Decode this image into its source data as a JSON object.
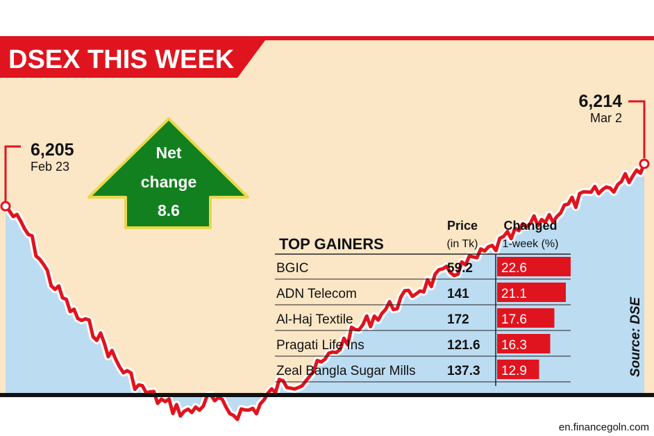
{
  "chart_data": {
    "type": "line",
    "title": "DSEX THIS WEEK",
    "start_point": {
      "value": "6,205",
      "label": "Feb 23",
      "y": 6205
    },
    "end_point": {
      "value": "6,214",
      "label": "Mar 2",
      "y": 6214
    },
    "net_change": {
      "line1": "Net",
      "line2": "change",
      "value": "8.6"
    },
    "source": "Source: DSE",
    "series": [
      {
        "values": [
          6205,
          6199,
          6189,
          6182,
          6178,
          6171,
          6166,
          6163,
          6161,
          6164,
          6161,
          6162,
          6167,
          6168,
          6172,
          6177,
          6181,
          6184,
          6187,
          6190,
          6192,
          6195,
          6198,
          6201,
          6203,
          6206,
          6208,
          6210,
          6214
        ]
      }
    ],
    "line_color": "#e0141e",
    "area_color": "#bcdcf2",
    "background_color": "#fbe6c6",
    "grid": false,
    "table": {
      "title": "TOP GAINERS",
      "price_header_line1": "Price",
      "price_header_line2": "(in Tk)",
      "change_header_line1": "Changed",
      "change_header_line2": "1-week (%)",
      "rows": [
        {
          "name": "BGIC",
          "price": "59.2",
          "change": "22.6",
          "change_value": 22.6
        },
        {
          "name": "ADN Telecom",
          "price": "141",
          "change": "21.1",
          "change_value": 21.1
        },
        {
          "name": "Al-Haj Textile",
          "price": "172",
          "change": "17.6",
          "change_value": 17.6
        },
        {
          "name": "Pragati Life Ins",
          "price": "121.6",
          "change": "16.3",
          "change_value": 16.3
        },
        {
          "name": "Zeal Bangla Sugar Mills",
          "price": "137.3",
          "change": "12.9",
          "change_value": 12.9
        }
      ]
    }
  },
  "footer": {
    "credit": "en.financegoln.com"
  }
}
